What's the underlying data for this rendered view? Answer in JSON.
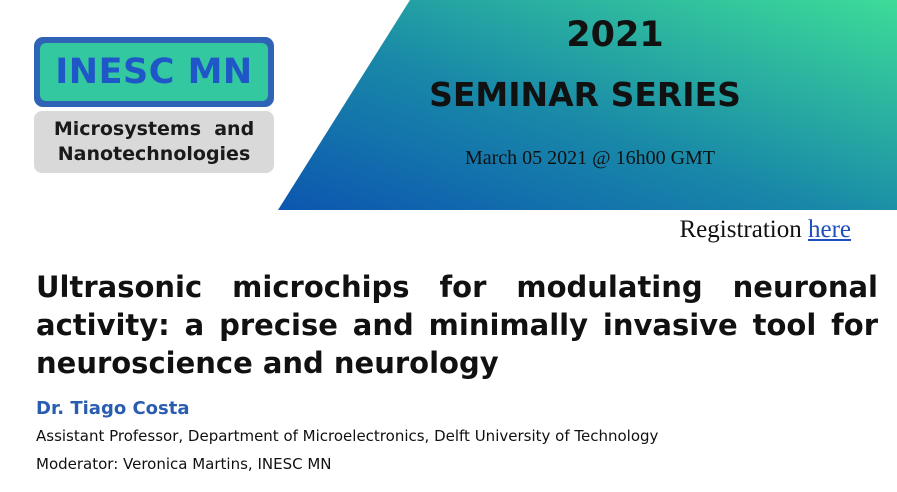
{
  "colors": {
    "banner_gradient_start": "#0c56b0",
    "banner_gradient_end": "#3ddc98",
    "logo_border": "#2e63b6",
    "logo_fill": "#33c8a0",
    "logo_text": "#1f57c8",
    "logo_sub_fill": "#d9d9d9",
    "link": "#1f4fbf",
    "speaker": "#2a5db0"
  },
  "logo": {
    "name": "INESC MN",
    "subtitle_line1": "Microsystems  and",
    "subtitle_line2": "Nanotechnologies"
  },
  "header": {
    "year": "2021",
    "series": "SEMINAR SERIES",
    "date": "March 05 2021 @ 16h00 GMT"
  },
  "registration": {
    "label": "Registration",
    "link_text": "here"
  },
  "talk": {
    "title": "Ultrasonic microchips for modulating neuronal activity: a precise and minimally invasive tool for neuroscience and neurology",
    "speaker": "Dr. Tiago Costa",
    "affiliation": "Assistant Professor, Department of Microelectronics, Delft University of Technology",
    "moderator": "Moderator: Veronica Martins, INESC MN"
  }
}
